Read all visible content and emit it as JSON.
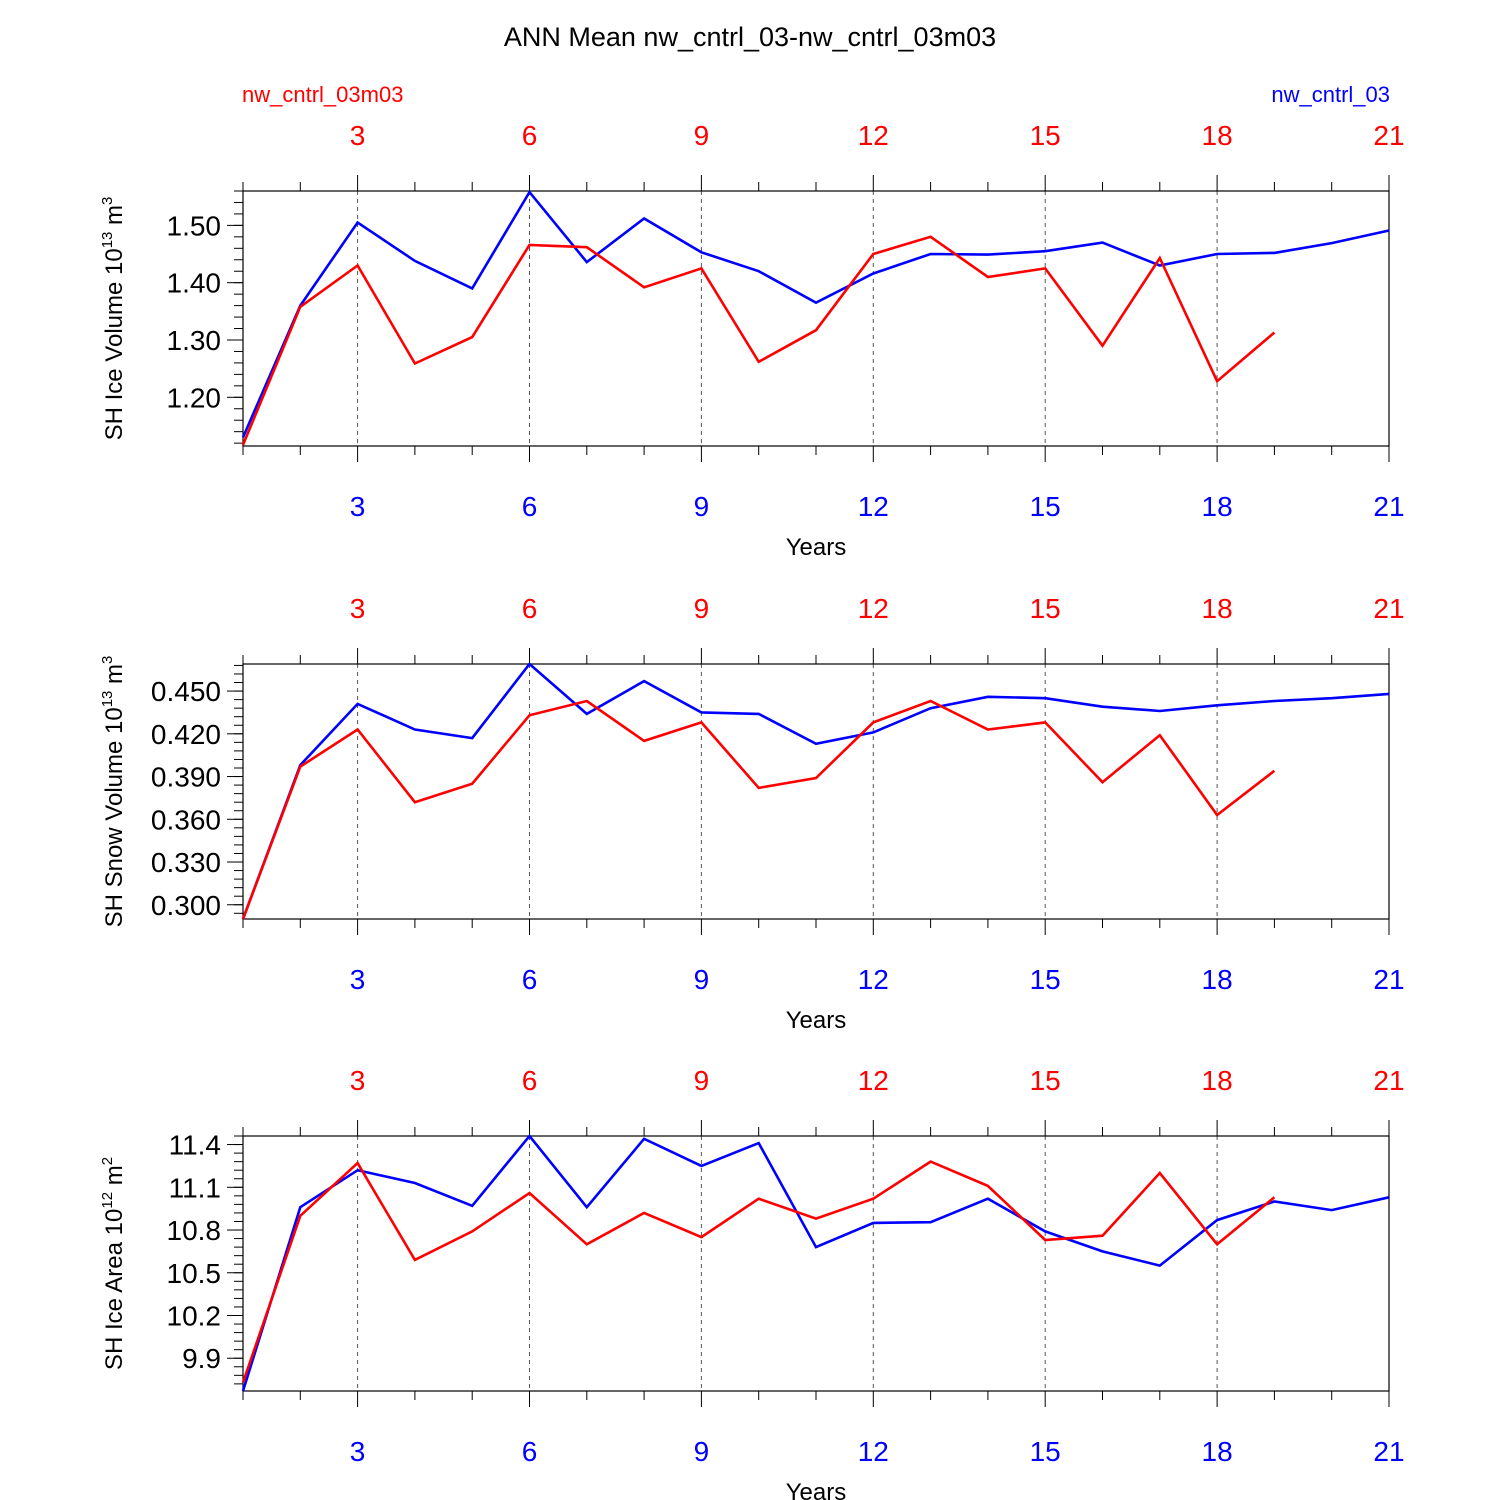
{
  "title": "ANN Mean nw_cntrl_03-nw_cntrl_03m03",
  "legend": {
    "left_label": "nw_cntrl_03m03",
    "left_color": "#ff0000",
    "right_label": "nw_cntrl_03",
    "right_color": "#0000ff"
  },
  "x_ticks": [
    "3",
    "6",
    "9",
    "12",
    "15",
    "18",
    "21"
  ],
  "chart_data": [
    {
      "type": "line",
      "ylabel": "SH Ice Volume 10",
      "ylabel_exp": "13",
      "ylabel_unit": " m",
      "ylabel_unit_exp": "3",
      "xlabel": "Years",
      "xlim": [
        1,
        21
      ],
      "ylim": [
        1.115,
        1.56
      ],
      "y_ticks": [
        "1.20",
        "1.30",
        "1.40",
        "1.50"
      ],
      "grid": "vertical dashed at major x ticks",
      "series": [
        {
          "name": "nw_cntrl_03",
          "color": "#0000ff",
          "x": [
            1,
            2,
            3,
            4,
            5,
            6,
            7,
            8,
            9,
            10,
            11,
            12,
            13,
            14,
            15,
            16,
            17,
            18,
            19,
            20,
            21
          ],
          "values": [
            1.13,
            1.36,
            1.505,
            1.438,
            1.39,
            1.558,
            1.436,
            1.512,
            1.453,
            1.42,
            1.365,
            1.416,
            1.45,
            1.449,
            1.455,
            1.47,
            1.43,
            1.45,
            1.452,
            1.469,
            1.491
          ]
        },
        {
          "name": "nw_cntrl_03m03",
          "color": "#ff0000",
          "x": [
            1,
            2,
            3,
            4,
            5,
            6,
            7,
            8,
            9,
            10,
            11,
            12,
            13,
            14,
            15,
            16,
            17,
            18,
            19
          ],
          "values": [
            1.117,
            1.358,
            1.43,
            1.259,
            1.305,
            1.466,
            1.462,
            1.392,
            1.425,
            1.262,
            1.317,
            1.45,
            1.48,
            1.41,
            1.425,
            1.29,
            1.443,
            1.228,
            1.313
          ]
        }
      ]
    },
    {
      "type": "line",
      "ylabel": "SH Snow Volume 10",
      "ylabel_exp": "13",
      "ylabel_unit": " m",
      "ylabel_unit_exp": "3",
      "xlabel": "Years",
      "xlim": [
        1,
        21
      ],
      "ylim": [
        0.29,
        0.469
      ],
      "y_ticks": [
        "0.300",
        "0.330",
        "0.360",
        "0.390",
        "0.420",
        "0.450"
      ],
      "grid": "vertical dashed at major x ticks",
      "series": [
        {
          "name": "nw_cntrl_03",
          "color": "#0000ff",
          "x": [
            1,
            2,
            3,
            4,
            5,
            6,
            7,
            8,
            9,
            10,
            11,
            12,
            13,
            14,
            15,
            16,
            17,
            18,
            19,
            20,
            21
          ],
          "values": [
            0.29,
            0.398,
            0.441,
            0.423,
            0.417,
            0.469,
            0.434,
            0.457,
            0.435,
            0.434,
            0.413,
            0.421,
            0.438,
            0.446,
            0.445,
            0.439,
            0.436,
            0.44,
            0.443,
            0.445,
            0.448
          ]
        },
        {
          "name": "nw_cntrl_03m03",
          "color": "#ff0000",
          "x": [
            1,
            2,
            3,
            4,
            5,
            6,
            7,
            8,
            9,
            10,
            11,
            12,
            13,
            14,
            15,
            16,
            17,
            18,
            19
          ],
          "values": [
            0.29,
            0.397,
            0.423,
            0.372,
            0.385,
            0.433,
            0.443,
            0.415,
            0.428,
            0.382,
            0.389,
            0.428,
            0.443,
            0.423,
            0.428,
            0.386,
            0.419,
            0.363,
            0.394
          ]
        }
      ]
    },
    {
      "type": "line",
      "ylabel": "SH Ice Area 10",
      "ylabel_exp": "12",
      "ylabel_unit": " m",
      "ylabel_unit_exp": "2",
      "xlabel": "Years",
      "xlim": [
        1,
        21
      ],
      "ylim": [
        9.67,
        11.46
      ],
      "y_ticks": [
        "9.9",
        "10.2",
        "10.5",
        "10.8",
        "11.1",
        "11.4"
      ],
      "grid": "vertical dashed at major x ticks",
      "series": [
        {
          "name": "nw_cntrl_03",
          "color": "#0000ff",
          "x": [
            1,
            2,
            3,
            4,
            5,
            6,
            7,
            8,
            9,
            10,
            11,
            12,
            13,
            14,
            15,
            16,
            17,
            18,
            19,
            20,
            21
          ],
          "values": [
            9.67,
            10.96,
            11.22,
            11.13,
            10.97,
            11.46,
            10.96,
            11.44,
            11.25,
            11.41,
            10.68,
            10.85,
            10.855,
            11.02,
            10.79,
            10.65,
            10.55,
            10.87,
            11.0,
            10.94,
            11.03
          ]
        },
        {
          "name": "nw_cntrl_03m03",
          "color": "#ff0000",
          "x": [
            1,
            2,
            3,
            4,
            5,
            6,
            7,
            8,
            9,
            10,
            11,
            12,
            13,
            14,
            15,
            16,
            17,
            18,
            19
          ],
          "values": [
            9.73,
            10.9,
            11.27,
            10.59,
            10.79,
            11.06,
            10.7,
            10.92,
            10.75,
            11.02,
            10.88,
            11.02,
            11.28,
            11.11,
            10.73,
            10.76,
            11.2,
            10.7,
            11.03
          ]
        }
      ]
    }
  ]
}
